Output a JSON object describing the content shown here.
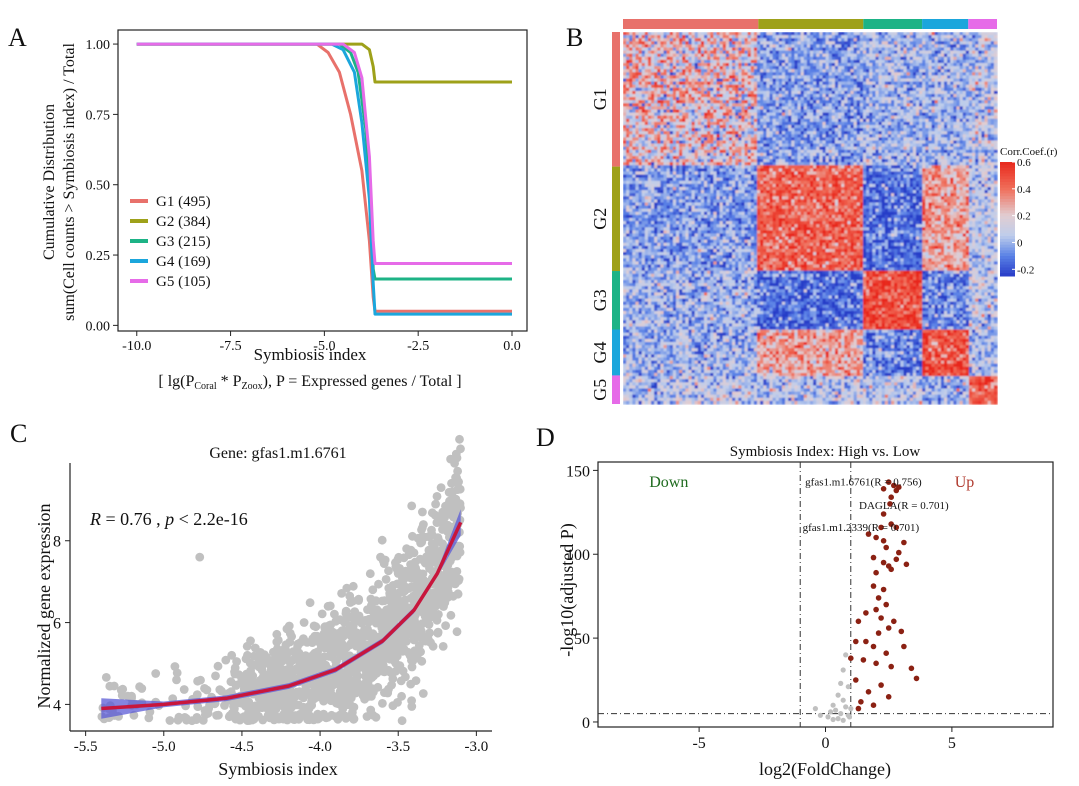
{
  "colors": {
    "G1": "#e8716b",
    "G2": "#9ea11a",
    "G3": "#1db386",
    "G4": "#1ba6dc",
    "G5": "#e66be8",
    "up": "#8b2113",
    "ns": "#c0c0c0",
    "fit": "#c8163c",
    "ci": "#5b5bd6",
    "heat_hi": "#e83020",
    "heat_mid": "#d0d8e8",
    "heat_lo": "#2040c8"
  },
  "panels": {
    "A": {
      "letter": "A",
      "chart_data": {
        "type": "line",
        "ylabel": "Cumulative Distribution",
        "ylabel2": "sum(Cell counts > Symbiosis index) / Total",
        "xlabel": "Symbiosis index",
        "subxlabel": {
          "prefix": "[ lg(P",
          "sub1": "Coral",
          "mid": " * P",
          "sub2": "Zoox",
          "suffix": "), P = Expressed genes / Total ]"
        },
        "xlim": [
          -10.5,
          0.4
        ],
        "ylim": [
          -0.02,
          1.05
        ],
        "xticks": [
          "-10.0",
          "-7.5",
          "-5.0",
          "-2.5",
          "0.0"
        ],
        "xtick_values": [
          -10,
          -7.5,
          -5,
          -2.5,
          0
        ],
        "yticks": [
          "0.00",
          "0.25",
          "0.50",
          "0.75",
          "1.00"
        ],
        "ytick_values": [
          0,
          0.25,
          0.5,
          0.75,
          1.0
        ],
        "series": [
          {
            "name": "G1 (495)",
            "key": "G1",
            "x": [
              -10,
              -5.2,
              -4.9,
              -4.6,
              -4.3,
              -4.0,
              -3.8,
              -3.7,
              -3.65,
              0
            ],
            "y": [
              1.0,
              1.0,
              0.97,
              0.9,
              0.75,
              0.55,
              0.3,
              0.1,
              0.05,
              0.05
            ]
          },
          {
            "name": "G2 (384)",
            "key": "G2",
            "x": [
              -10,
              -4.3,
              -4.0,
              -3.8,
              -3.7,
              -3.65,
              0
            ],
            "y": [
              1.0,
              1.0,
              1.0,
              0.98,
              0.92,
              0.865,
              0.865
            ]
          },
          {
            "name": "G3 (215)",
            "key": "G3",
            "x": [
              -10,
              -4.6,
              -4.3,
              -4.1,
              -3.9,
              -3.75,
              -3.7,
              -3.65,
              0
            ],
            "y": [
              1.0,
              1.0,
              0.97,
              0.9,
              0.7,
              0.4,
              0.2,
              0.165,
              0.165
            ]
          },
          {
            "name": "G4 (169)",
            "key": "G4",
            "x": [
              -10,
              -4.8,
              -4.5,
              -4.2,
              -4.0,
              -3.8,
              -3.7,
              -3.65,
              0
            ],
            "y": [
              1.0,
              1.0,
              0.98,
              0.9,
              0.72,
              0.45,
              0.15,
              0.04,
              0.04
            ]
          },
          {
            "name": "G5 (105)",
            "key": "G5",
            "x": [
              -10,
              -4.5,
              -4.2,
              -4.0,
              -3.8,
              -3.7,
              -3.65,
              0
            ],
            "y": [
              1.0,
              1.0,
              0.97,
              0.88,
              0.6,
              0.3,
              0.22,
              0.22
            ]
          }
        ],
        "legend": "bottom-left"
      }
    },
    "B": {
      "letter": "B",
      "chart_data": {
        "type": "heatmap",
        "groups": [
          {
            "name": "G1",
            "size": 495
          },
          {
            "name": "G2",
            "size": 384
          },
          {
            "name": "G3",
            "size": 215
          },
          {
            "name": "G4",
            "size": 169
          },
          {
            "name": "G5",
            "size": 105
          }
        ],
        "block_means": [
          [
            0.35,
            -0.05,
            0.0,
            0.0,
            0.05
          ],
          [
            -0.05,
            0.45,
            -0.15,
            0.3,
            0.05
          ],
          [
            0.0,
            -0.15,
            0.5,
            -0.1,
            0.05
          ],
          [
            0.0,
            0.3,
            -0.1,
            0.5,
            0.0
          ],
          [
            0.05,
            0.05,
            0.05,
            0.0,
            0.45
          ]
        ],
        "colorbar": {
          "title": "Corr.Coef.(r)",
          "ticks": [
            "0.6",
            "0.4",
            "0.2",
            "0",
            "-0.2"
          ],
          "tick_values": [
            0.6,
            0.4,
            0.2,
            0.0,
            -0.2
          ],
          "range": [
            -0.25,
            0.6
          ]
        }
      }
    },
    "C": {
      "letter": "C",
      "chart_data": {
        "type": "scatter",
        "title": "Gene: gfas1.m1.6761",
        "annotation": {
          "R": "R",
          "eq1": " = 0.76 , ",
          "p": "p",
          "eq2": " < 2.2e-16"
        },
        "xlabel": "Symbiosis index",
        "ylabel": "Normalized gene expression",
        "xlim": [
          -5.6,
          -2.9
        ],
        "ylim": [
          3.35,
          9.9
        ],
        "xticks": [
          "-5.5",
          "-5.0",
          "-4.5",
          "-4.0",
          "-3.5",
          "-3.0"
        ],
        "xtick_values": [
          -5.5,
          -5.0,
          -4.5,
          -4.0,
          -3.5,
          -3.0
        ],
        "yticks": [
          "4",
          "6",
          "8"
        ],
        "ytick_values": [
          4,
          6,
          8
        ],
        "fit": {
          "x": [
            -5.4,
            -5.0,
            -4.6,
            -4.2,
            -3.9,
            -3.6,
            -3.4,
            -3.25,
            -3.1
          ],
          "y": [
            3.9,
            4.0,
            4.15,
            4.45,
            4.85,
            5.55,
            6.3,
            7.2,
            8.45
          ]
        },
        "outliers": [
          {
            "x": -4.77,
            "y": 7.6
          },
          {
            "x": -3.12,
            "y": 9.7
          },
          {
            "x": -3.15,
            "y": 9.2
          }
        ],
        "n_points": 1400
      }
    },
    "D": {
      "letter": "D",
      "chart_data": {
        "type": "scatter",
        "title": "Symbiosis Index: High vs. Low",
        "xlabel": "log2(FoldChange)",
        "ylabel": "-log10(adjusted P)",
        "xlim": [
          -9,
          9
        ],
        "ylim": [
          -3,
          155
        ],
        "xticks": [
          "-5",
          "0",
          "5"
        ],
        "xtick_values": [
          -5,
          0,
          5
        ],
        "yticks": [
          "0",
          "50",
          "100",
          "150"
        ],
        "ytick_values": [
          0,
          50,
          100,
          150
        ],
        "vlines": [
          -1,
          1
        ],
        "hline": 5,
        "down_label": "Down",
        "up_label": "Up",
        "labels": [
          {
            "text": "gfas1.m1.6761(R = 0.756)",
            "x": 1.5,
            "y": 141
          },
          {
            "text": "DAGLA(R = 0.701)",
            "x": 3.1,
            "y": 127
          },
          {
            "text": "gfas1.m1.2339(R = 0.701)",
            "x": 1.4,
            "y": 114
          }
        ],
        "up_points": [
          [
            2.5,
            143
          ],
          [
            2.7,
            141
          ],
          [
            2.3,
            139
          ],
          [
            2.9,
            140
          ],
          [
            2.6,
            134
          ],
          [
            2.8,
            138
          ],
          [
            2.55,
            130
          ],
          [
            2.3,
            124
          ],
          [
            2.2,
            116
          ],
          [
            2.6,
            118
          ],
          [
            2.8,
            116
          ],
          [
            1.7,
            112
          ],
          [
            2.0,
            110
          ],
          [
            2.3,
            108
          ],
          [
            2.4,
            104
          ],
          [
            3.1,
            107
          ],
          [
            2.9,
            101
          ],
          [
            1.9,
            98
          ],
          [
            2.3,
            95
          ],
          [
            2.5,
            93
          ],
          [
            2.0,
            89
          ],
          [
            2.6,
            91
          ],
          [
            3.2,
            94
          ],
          [
            2.8,
            97
          ],
          [
            1.9,
            81
          ],
          [
            2.3,
            79
          ],
          [
            2.1,
            74
          ],
          [
            2.4,
            70
          ],
          [
            2.0,
            67
          ],
          [
            1.6,
            65
          ],
          [
            2.2,
            62
          ],
          [
            2.7,
            60
          ],
          [
            2.5,
            56
          ],
          [
            3.0,
            54
          ],
          [
            1.3,
            60
          ],
          [
            1.2,
            48
          ],
          [
            1.6,
            48
          ],
          [
            2.1,
            53
          ],
          [
            1.9,
            45
          ],
          [
            3.1,
            45
          ],
          [
            2.4,
            41
          ],
          [
            1.0,
            38
          ],
          [
            1.5,
            37
          ],
          [
            2.0,
            35
          ],
          [
            2.6,
            33
          ],
          [
            3.4,
            32
          ],
          [
            1.2,
            25
          ],
          [
            2.2,
            22
          ],
          [
            1.7,
            18
          ],
          [
            2.5,
            15
          ],
          [
            3.6,
            26
          ],
          [
            1.4,
            12
          ],
          [
            1.9,
            10
          ],
          [
            1.3,
            8
          ]
        ],
        "ns_points": [
          [
            0.8,
            40
          ],
          [
            0.7,
            31
          ],
          [
            0.6,
            23
          ],
          [
            0.9,
            21
          ],
          [
            0.5,
            16
          ],
          [
            0.7,
            13
          ],
          [
            0.3,
            10
          ],
          [
            0.8,
            9
          ],
          [
            1.0,
            8
          ],
          [
            0.4,
            7
          ],
          [
            0.2,
            6
          ],
          [
            0.6,
            5
          ],
          [
            0.9,
            4
          ],
          [
            0.1,
            3
          ],
          [
            0.5,
            2
          ],
          [
            -0.4,
            8
          ],
          [
            -0.2,
            4
          ],
          [
            0.3,
            1.5
          ],
          [
            0.7,
            1
          ],
          [
            0.95,
            3
          ]
        ]
      }
    }
  }
}
